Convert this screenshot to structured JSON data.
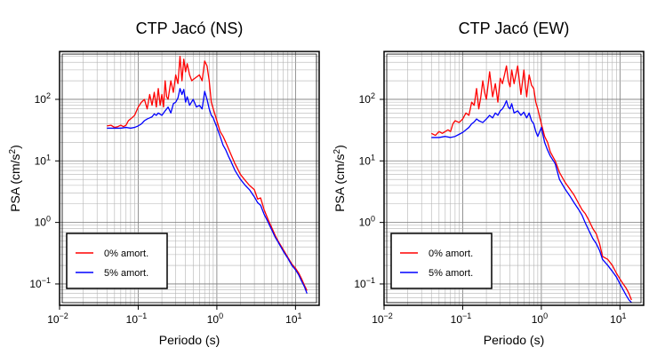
{
  "chart_data": [
    {
      "type": "line",
      "title": "CTP Jacó (NS)",
      "xlabel": "Periodo (s)",
      "ylabel": "PSA (cm/s",
      "ylabel_sup": "2",
      "ylabel_close": ")",
      "xscale": "log",
      "yscale": "log",
      "xlim": [
        0.01,
        20
      ],
      "ylim": [
        0.045,
        600
      ],
      "grid": true,
      "legend_position": "bottom-left",
      "x_ticks": [
        {
          "base": "10",
          "exp": "−2"
        },
        {
          "base": "10",
          "exp": "−1"
        },
        {
          "base": "10",
          "exp": "0"
        },
        {
          "base": "10",
          "exp": "1"
        }
      ],
      "y_ticks": [
        "10",
        "10",
        "10",
        "10"
      ],
      "y_ticks_exp": [
        "−1",
        "0",
        "1",
        "2"
      ],
      "series": [
        {
          "name": "0% amort.",
          "color": "#ff0000",
          "x": [
            0.04,
            0.045,
            0.05,
            0.055,
            0.06,
            0.065,
            0.07,
            0.075,
            0.08,
            0.09,
            0.1,
            0.11,
            0.12,
            0.13,
            0.14,
            0.15,
            0.16,
            0.17,
            0.18,
            0.19,
            0.2,
            0.21,
            0.22,
            0.23,
            0.24,
            0.26,
            0.28,
            0.3,
            0.32,
            0.34,
            0.36,
            0.38,
            0.4,
            0.42,
            0.45,
            0.48,
            0.5,
            0.55,
            0.6,
            0.65,
            0.7,
            0.75,
            0.8,
            0.85,
            0.9,
            1.0,
            1.1,
            1.2,
            1.3,
            1.4,
            1.5,
            1.7,
            2.0,
            2.3,
            2.6,
            3.0,
            3.3,
            3.6,
            4.0,
            4.5,
            5.0,
            5.5,
            6.0,
            7.0,
            8.0,
            9.0,
            10.0,
            11.0,
            12.0,
            13.0,
            14.0
          ],
          "y": [
            37,
            38,
            35,
            36,
            38,
            36,
            38,
            45,
            48,
            55,
            75,
            90,
            100,
            70,
            120,
            80,
            130,
            75,
            150,
            80,
            120,
            75,
            200,
            110,
            100,
            200,
            130,
            250,
            180,
            500,
            200,
            450,
            280,
            380,
            250,
            200,
            210,
            230,
            250,
            200,
            420,
            350,
            200,
            90,
            70,
            45,
            30,
            25,
            20,
            16,
            13,
            9,
            6,
            4.8,
            4,
            3.4,
            2.4,
            2.5,
            1.6,
            1.1,
            0.82,
            0.62,
            0.5,
            0.36,
            0.27,
            0.21,
            0.18,
            0.15,
            0.12,
            0.095,
            0.078
          ]
        },
        {
          "name": "5% amort.",
          "color": "#0000ff",
          "x": [
            0.04,
            0.05,
            0.06,
            0.07,
            0.08,
            0.09,
            0.1,
            0.11,
            0.12,
            0.13,
            0.14,
            0.15,
            0.16,
            0.17,
            0.18,
            0.2,
            0.22,
            0.24,
            0.26,
            0.28,
            0.3,
            0.32,
            0.34,
            0.36,
            0.38,
            0.4,
            0.42,
            0.45,
            0.5,
            0.55,
            0.6,
            0.65,
            0.7,
            0.75,
            0.8,
            0.85,
            0.9,
            1.0,
            1.1,
            1.2,
            1.3,
            1.4,
            1.5,
            1.7,
            2.0,
            2.3,
            2.6,
            3.0,
            3.3,
            3.6,
            4.0,
            4.5,
            5.0,
            5.5,
            6.0,
            7.0,
            8.0,
            9.0,
            10.0,
            11.0,
            12.0,
            13.0,
            14.0
          ],
          "y": [
            34,
            34,
            34,
            35,
            34,
            35,
            37,
            40,
            45,
            48,
            50,
            52,
            58,
            55,
            60,
            55,
            65,
            75,
            60,
            85,
            90,
            105,
            150,
            120,
            145,
            90,
            110,
            80,
            100,
            75,
            80,
            70,
            135,
            100,
            70,
            55,
            50,
            35,
            25,
            18,
            15,
            12,
            10,
            7,
            5,
            4,
            3.4,
            2.6,
            2.1,
            1.9,
            1.35,
            1.0,
            0.75,
            0.58,
            0.48,
            0.34,
            0.26,
            0.2,
            0.17,
            0.14,
            0.11,
            0.09,
            0.07
          ]
        }
      ]
    },
    {
      "type": "line",
      "title": "CTP Jacó (EW)",
      "xlabel": "Periodo (s)",
      "ylabel": "PSA (cm/s",
      "ylabel_sup": "2",
      "ylabel_close": ")",
      "xscale": "log",
      "yscale": "log",
      "xlim": [
        0.01,
        20
      ],
      "ylim": [
        0.045,
        600
      ],
      "grid": true,
      "legend_position": "bottom-left",
      "x_ticks": [
        {
          "base": "10",
          "exp": "−2"
        },
        {
          "base": "10",
          "exp": "−1"
        },
        {
          "base": "10",
          "exp": "0"
        },
        {
          "base": "10",
          "exp": "1"
        }
      ],
      "y_ticks": [
        "10",
        "10",
        "10",
        "10"
      ],
      "y_ticks_exp": [
        "−1",
        "0",
        "1",
        "2"
      ],
      "series": [
        {
          "name": "0% amort.",
          "color": "#ff0000",
          "x": [
            0.04,
            0.045,
            0.05,
            0.055,
            0.06,
            0.065,
            0.07,
            0.075,
            0.08,
            0.09,
            0.1,
            0.11,
            0.12,
            0.13,
            0.14,
            0.15,
            0.16,
            0.17,
            0.18,
            0.19,
            0.2,
            0.22,
            0.24,
            0.26,
            0.28,
            0.3,
            0.32,
            0.34,
            0.36,
            0.38,
            0.4,
            0.42,
            0.45,
            0.5,
            0.55,
            0.6,
            0.65,
            0.7,
            0.75,
            0.8,
            0.85,
            0.9,
            1.0,
            1.1,
            1.2,
            1.3,
            1.5,
            1.7,
            2.0,
            2.3,
            2.6,
            3.0,
            3.3,
            3.6,
            4.0,
            4.5,
            5.0,
            5.5,
            6.0,
            7.0,
            8.0,
            9.0,
            10.0,
            11.0,
            12.0,
            13.0,
            14.0
          ],
          "y": [
            28,
            26,
            30,
            28,
            30,
            32,
            30,
            40,
            45,
            42,
            48,
            60,
            55,
            90,
            80,
            150,
            70,
            110,
            200,
            130,
            100,
            280,
            110,
            180,
            90,
            220,
            180,
            250,
            350,
            200,
            160,
            300,
            180,
            350,
            120,
            300,
            110,
            250,
            170,
            150,
            90,
            70,
            40,
            25,
            20,
            14,
            10,
            6.5,
            4.5,
            3.5,
            2.8,
            2.0,
            1.6,
            1.4,
            1.1,
            0.8,
            0.65,
            0.45,
            0.28,
            0.25,
            0.2,
            0.15,
            0.12,
            0.1,
            0.085,
            0.07,
            0.055
          ]
        },
        {
          "name": "5% amort.",
          "color": "#0000ff",
          "x": [
            0.04,
            0.05,
            0.06,
            0.07,
            0.08,
            0.09,
            0.1,
            0.11,
            0.12,
            0.13,
            0.14,
            0.15,
            0.16,
            0.18,
            0.2,
            0.22,
            0.24,
            0.26,
            0.28,
            0.3,
            0.32,
            0.34,
            0.36,
            0.38,
            0.4,
            0.42,
            0.45,
            0.5,
            0.55,
            0.6,
            0.65,
            0.7,
            0.75,
            0.8,
            0.85,
            0.9,
            1.0,
            1.1,
            1.2,
            1.3,
            1.5,
            1.7,
            2.0,
            2.3,
            2.6,
            3.0,
            3.3,
            3.6,
            4.0,
            4.5,
            5.0,
            5.5,
            6.0,
            7.0,
            8.0,
            9.0,
            10.0,
            11.0,
            12.0,
            13.0,
            14.0
          ],
          "y": [
            24,
            24,
            25,
            24,
            25,
            27,
            29,
            32,
            35,
            40,
            43,
            48,
            45,
            42,
            48,
            55,
            50,
            60,
            55,
            65,
            70,
            80,
            95,
            75,
            70,
            85,
            60,
            65,
            55,
            62,
            50,
            60,
            45,
            40,
            30,
            25,
            35,
            20,
            15,
            12,
            9,
            5,
            3.5,
            2.7,
            2.1,
            1.6,
            1.3,
            1.0,
            0.75,
            0.55,
            0.45,
            0.35,
            0.25,
            0.2,
            0.16,
            0.13,
            0.1,
            0.08,
            0.065,
            0.055,
            0.05
          ]
        }
      ]
    }
  ]
}
